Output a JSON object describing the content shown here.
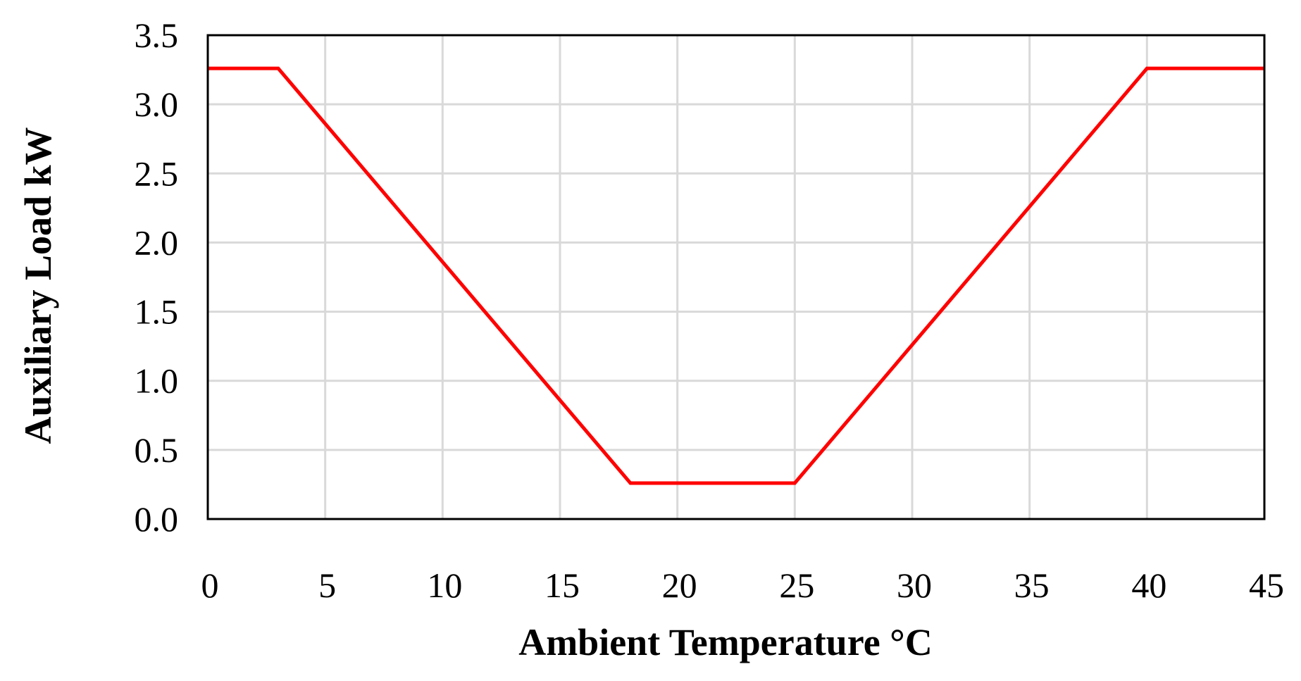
{
  "chart_data": {
    "type": "line",
    "title": "",
    "xlabel": "Ambient Temperature  °C",
    "ylabel": "Auxiliary Load  kW",
    "xlim": [
      0,
      45
    ],
    "ylim": [
      0,
      3.5
    ],
    "x_ticks": [
      "0",
      "5",
      "10",
      "15",
      "20",
      "25",
      "30",
      "35",
      "40",
      "45"
    ],
    "y_ticks": [
      "0.0",
      "0.5",
      "1.0",
      "1.5",
      "2.0",
      "2.5",
      "3.0",
      "3.5"
    ],
    "grid": true,
    "legend": "none",
    "series": [
      {
        "color": "#ff0000",
        "points": [
          {
            "x": 0,
            "y": 3.26
          },
          {
            "x": 3,
            "y": 3.26
          },
          {
            "x": 18,
            "y": 0.26
          },
          {
            "x": 25,
            "y": 0.26
          },
          {
            "x": 40,
            "y": 3.26
          },
          {
            "x": 45,
            "y": 3.26
          }
        ]
      }
    ]
  }
}
